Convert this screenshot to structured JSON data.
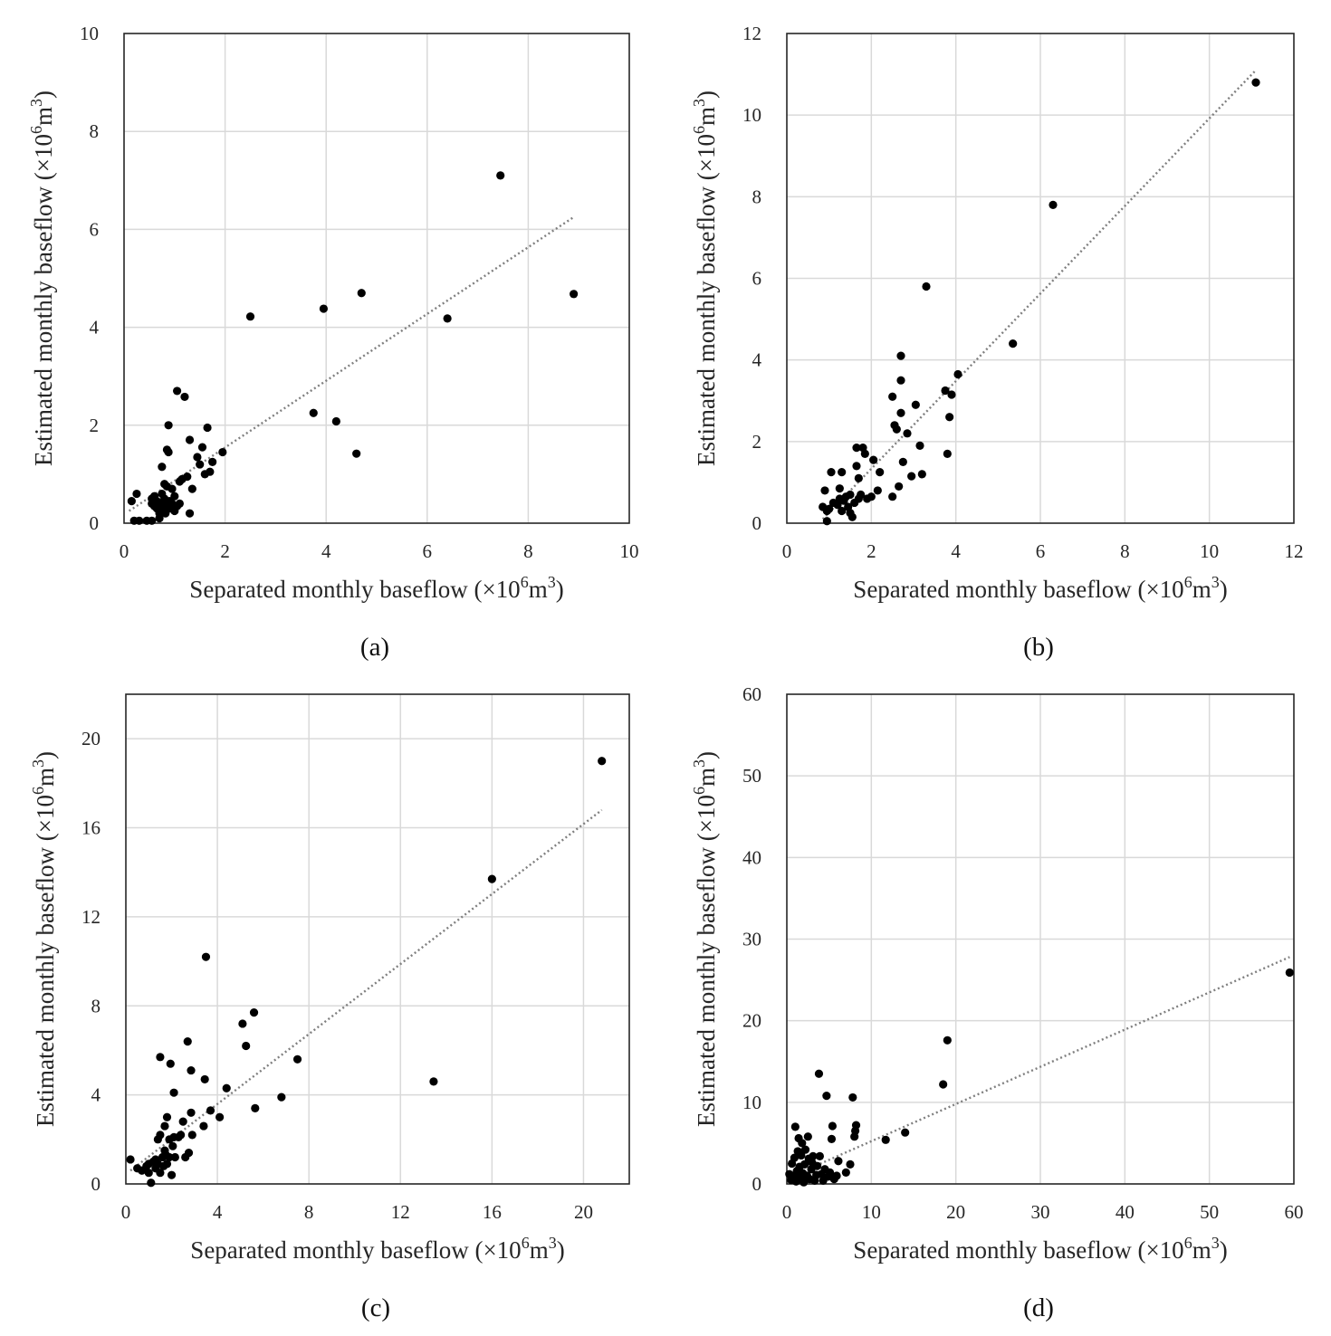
{
  "chart_data": [
    {
      "panel_label": "(a)",
      "type": "scatter",
      "xlabel": "Separated monthly baseflow (×10",
      "ylabel": "Estimated monthly baseflow (×10",
      "unit_exp": "6",
      "unit_tail": "m",
      "unit_pow": "3",
      "unit_close": ")",
      "xlim": [
        0,
        10
      ],
      "ylim": [
        0,
        10
      ],
      "xticks": [
        "0",
        "2",
        "4",
        "6",
        "8",
        "10"
      ],
      "yticks": [
        "0",
        "2",
        "4",
        "6",
        "8",
        "10"
      ],
      "trendline": [
        [
          0.1,
          0.25
        ],
        [
          8.9,
          6.25
        ]
      ],
      "points": [
        [
          0.15,
          0.45
        ],
        [
          0.25,
          0.6
        ],
        [
          0.2,
          0.05
        ],
        [
          0.3,
          0.05
        ],
        [
          0.45,
          0.05
        ],
        [
          0.55,
          0.05
        ],
        [
          0.55,
          0.4
        ],
        [
          0.6,
          0.35
        ],
        [
          0.55,
          0.5
        ],
        [
          0.6,
          0.55
        ],
        [
          0.65,
          0.45
        ],
        [
          0.65,
          0.3
        ],
        [
          0.7,
          0.2
        ],
        [
          0.7,
          0.1
        ],
        [
          0.72,
          0.4
        ],
        [
          0.75,
          0.6
        ],
        [
          0.75,
          1.15
        ],
        [
          0.78,
          0.25
        ],
        [
          0.8,
          0.35
        ],
        [
          0.8,
          0.5
        ],
        [
          0.8,
          0.8
        ],
        [
          0.82,
          0.2
        ],
        [
          0.85,
          0.75
        ],
        [
          0.85,
          1.5
        ],
        [
          0.88,
          1.45
        ],
        [
          0.88,
          2.0
        ],
        [
          0.9,
          0.3
        ],
        [
          0.9,
          0.45
        ],
        [
          0.95,
          0.4
        ],
        [
          0.95,
          0.7
        ],
        [
          1.0,
          0.25
        ],
        [
          1.0,
          0.55
        ],
        [
          1.05,
          0.35
        ],
        [
          1.05,
          2.7
        ],
        [
          1.1,
          0.4
        ],
        [
          1.1,
          0.85
        ],
        [
          1.15,
          0.9
        ],
        [
          1.2,
          2.58
        ],
        [
          1.25,
          0.95
        ],
        [
          1.3,
          1.7
        ],
        [
          1.3,
          0.2
        ],
        [
          1.35,
          0.7
        ],
        [
          1.45,
          1.35
        ],
        [
          1.5,
          1.2
        ],
        [
          1.55,
          1.55
        ],
        [
          1.6,
          1.0
        ],
        [
          1.65,
          1.95
        ],
        [
          1.7,
          1.05
        ],
        [
          1.75,
          1.25
        ],
        [
          1.95,
          1.45
        ],
        [
          2.5,
          4.22
        ],
        [
          3.75,
          2.25
        ],
        [
          3.95,
          4.38
        ],
        [
          4.2,
          2.08
        ],
        [
          4.6,
          1.42
        ],
        [
          4.7,
          4.7
        ],
        [
          6.4,
          4.18
        ],
        [
          7.45,
          7.1
        ],
        [
          8.9,
          4.68
        ]
      ]
    },
    {
      "panel_label": "(b)",
      "type": "scatter",
      "xlabel": "Separated monthly baseflow (×10",
      "ylabel": "Estimated monthly baseflow (×10",
      "unit_exp": "6",
      "unit_tail": "m",
      "unit_pow": "3",
      "unit_close": ")",
      "xlim": [
        0,
        12
      ],
      "ylim": [
        0,
        12
      ],
      "xticks": [
        "0",
        "2",
        "4",
        "6",
        "8",
        "10",
        "12"
      ],
      "yticks": [
        "0",
        "2",
        "4",
        "6",
        "8",
        "10",
        "12"
      ],
      "trendline": [
        [
          0.85,
          0.1
        ],
        [
          11.1,
          11.1
        ]
      ],
      "points": [
        [
          0.9,
          0.8
        ],
        [
          0.85,
          0.4
        ],
        [
          0.95,
          0.3
        ],
        [
          0.95,
          0.05
        ],
        [
          1.0,
          0.35
        ],
        [
          1.05,
          1.25
        ],
        [
          1.1,
          0.5
        ],
        [
          1.2,
          0.45
        ],
        [
          1.25,
          0.85
        ],
        [
          1.25,
          0.6
        ],
        [
          1.3,
          1.25
        ],
        [
          1.3,
          0.3
        ],
        [
          1.35,
          0.55
        ],
        [
          1.4,
          0.65
        ],
        [
          1.45,
          0.4
        ],
        [
          1.5,
          0.7
        ],
        [
          1.5,
          0.25
        ],
        [
          1.55,
          0.15
        ],
        [
          1.6,
          0.5
        ],
        [
          1.65,
          1.85
        ],
        [
          1.65,
          1.4
        ],
        [
          1.7,
          1.1
        ],
        [
          1.7,
          0.6
        ],
        [
          1.75,
          0.7
        ],
        [
          1.8,
          1.85
        ],
        [
          1.85,
          1.7
        ],
        [
          1.9,
          0.6
        ],
        [
          2.0,
          0.65
        ],
        [
          2.05,
          1.55
        ],
        [
          2.15,
          0.8
        ],
        [
          2.2,
          1.25
        ],
        [
          2.5,
          3.1
        ],
        [
          2.5,
          0.65
        ],
        [
          2.55,
          2.4
        ],
        [
          2.6,
          2.3
        ],
        [
          2.65,
          0.9
        ],
        [
          2.7,
          4.1
        ],
        [
          2.7,
          3.5
        ],
        [
          2.7,
          2.7
        ],
        [
          2.75,
          1.5
        ],
        [
          2.85,
          2.2
        ],
        [
          2.95,
          1.15
        ],
        [
          3.05,
          2.9
        ],
        [
          3.15,
          1.9
        ],
        [
          3.2,
          1.2
        ],
        [
          3.3,
          5.8
        ],
        [
          3.75,
          3.25
        ],
        [
          3.8,
          1.7
        ],
        [
          3.85,
          2.6
        ],
        [
          3.9,
          3.15
        ],
        [
          4.05,
          3.65
        ],
        [
          5.35,
          4.4
        ],
        [
          6.3,
          7.8
        ],
        [
          11.1,
          10.8
        ]
      ]
    },
    {
      "panel_label": "(c)",
      "type": "scatter",
      "xlabel": "Separated monthly baseflow (×10",
      "ylabel": "Estimated monthly baseflow (×10",
      "unit_exp": "6",
      "unit_tail": "m",
      "unit_pow": "3",
      "unit_close": ")",
      "xlim": [
        0,
        22
      ],
      "ylim": [
        0,
        22
      ],
      "xticks": [
        "0",
        "4",
        "8",
        "12",
        "16",
        "20"
      ],
      "yticks": [
        "0",
        "4",
        "8",
        "12",
        "16",
        "20"
      ],
      "trendline": [
        [
          0.2,
          0.6
        ],
        [
          20.8,
          16.8
        ]
      ],
      "points": [
        [
          0.2,
          1.1
        ],
        [
          0.5,
          0.7
        ],
        [
          0.7,
          0.6
        ],
        [
          0.9,
          0.8
        ],
        [
          1.0,
          0.5
        ],
        [
          1.0,
          0.9
        ],
        [
          1.1,
          0.05
        ],
        [
          1.2,
          1.0
        ],
        [
          1.3,
          1.1
        ],
        [
          1.3,
          0.7
        ],
        [
          1.4,
          0.9
        ],
        [
          1.4,
          2.0
        ],
        [
          1.5,
          0.5
        ],
        [
          1.5,
          2.2
        ],
        [
          1.5,
          5.7
        ],
        [
          1.6,
          1.2
        ],
        [
          1.65,
          0.8
        ],
        [
          1.7,
          1.5
        ],
        [
          1.7,
          2.6
        ],
        [
          1.75,
          1.3
        ],
        [
          1.8,
          3.0
        ],
        [
          1.8,
          0.9
        ],
        [
          1.9,
          1.2
        ],
        [
          1.9,
          2.0
        ],
        [
          1.95,
          5.4
        ],
        [
          2.0,
          0.4
        ],
        [
          2.05,
          1.7
        ],
        [
          2.1,
          4.1
        ],
        [
          2.1,
          2.1
        ],
        [
          2.15,
          1.2
        ],
        [
          2.3,
          2.1
        ],
        [
          2.4,
          2.2
        ],
        [
          2.5,
          2.8
        ],
        [
          2.6,
          1.2
        ],
        [
          2.7,
          6.4
        ],
        [
          2.75,
          1.4
        ],
        [
          2.85,
          5.1
        ],
        [
          2.85,
          3.2
        ],
        [
          2.9,
          2.2
        ],
        [
          3.4,
          2.6
        ],
        [
          3.45,
          4.7
        ],
        [
          3.5,
          10.2
        ],
        [
          3.7,
          3.3
        ],
        [
          4.1,
          3.0
        ],
        [
          4.4,
          4.3
        ],
        [
          5.1,
          7.2
        ],
        [
          5.25,
          6.2
        ],
        [
          5.6,
          7.7
        ],
        [
          5.65,
          3.4
        ],
        [
          6.8,
          3.9
        ],
        [
          7.5,
          5.6
        ],
        [
          13.45,
          4.6
        ],
        [
          16.0,
          13.7
        ],
        [
          20.8,
          19.0
        ]
      ]
    },
    {
      "panel_label": "(d)",
      "type": "scatter",
      "xlabel": "Separated monthly baseflow (×10",
      "ylabel": "Estimated monthly baseflow (×10",
      "unit_exp": "6",
      "unit_tail": "m",
      "unit_pow": "3",
      "unit_close": ")",
      "xlim": [
        0,
        60
      ],
      "ylim": [
        0,
        60
      ],
      "xticks": [
        "0",
        "10",
        "20",
        "30",
        "40",
        "50",
        "60"
      ],
      "yticks": [
        "0",
        "10",
        "20",
        "30",
        "40",
        "50",
        "60"
      ],
      "trendline": [
        [
          0.5,
          0.9
        ],
        [
          59.5,
          27.8
        ]
      ],
      "points": [
        [
          0.3,
          1.2
        ],
        [
          0.5,
          0.5
        ],
        [
          0.6,
          2.5
        ],
        [
          0.8,
          1.0
        ],
        [
          0.9,
          3.2
        ],
        [
          1.0,
          7.0
        ],
        [
          1.1,
          0.3
        ],
        [
          1.2,
          1.6
        ],
        [
          1.3,
          4.0
        ],
        [
          1.4,
          5.6
        ],
        [
          1.5,
          2.1
        ],
        [
          1.6,
          0.8
        ],
        [
          1.7,
          3.5
        ],
        [
          1.8,
          5.0
        ],
        [
          1.9,
          1.3
        ],
        [
          2.0,
          0.2
        ],
        [
          2.1,
          2.4
        ],
        [
          2.2,
          4.2
        ],
        [
          2.4,
          1.0
        ],
        [
          2.5,
          5.8
        ],
        [
          2.6,
          3.1
        ],
        [
          2.7,
          0.6
        ],
        [
          2.9,
          1.8
        ],
        [
          3.0,
          2.6
        ],
        [
          3.1,
          3.4
        ],
        [
          3.3,
          0.4
        ],
        [
          3.5,
          1.1
        ],
        [
          3.6,
          2.2
        ],
        [
          3.8,
          13.5
        ],
        [
          3.9,
          3.4
        ],
        [
          4.1,
          1.2
        ],
        [
          4.3,
          0.4
        ],
        [
          4.5,
          1.8
        ],
        [
          4.7,
          10.8
        ],
        [
          4.9,
          0.9
        ],
        [
          5.1,
          1.4
        ],
        [
          5.3,
          5.5
        ],
        [
          5.4,
          7.1
        ],
        [
          5.6,
          0.6
        ],
        [
          5.9,
          1.0
        ],
        [
          6.1,
          2.8
        ],
        [
          7.0,
          1.4
        ],
        [
          7.5,
          2.4
        ],
        [
          7.8,
          10.6
        ],
        [
          8.0,
          5.8
        ],
        [
          8.1,
          6.5
        ],
        [
          8.2,
          7.2
        ],
        [
          11.7,
          5.4
        ],
        [
          14.0,
          6.3
        ],
        [
          18.5,
          12.2
        ],
        [
          19.0,
          17.6
        ],
        [
          59.5,
          25.9
        ]
      ]
    }
  ]
}
